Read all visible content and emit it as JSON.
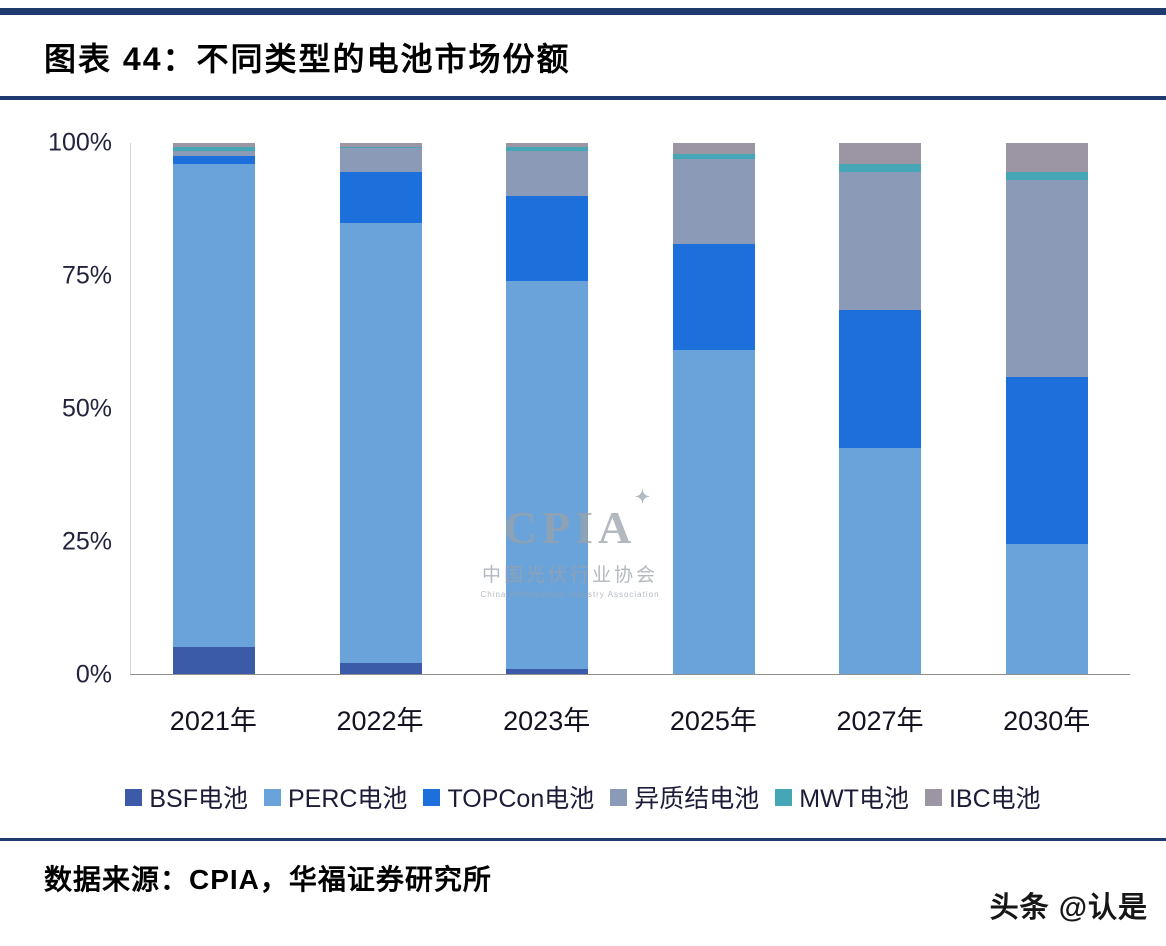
{
  "header": {
    "title": "图表 44：不同类型的电池市场份额"
  },
  "watermark": {
    "line1": "CPIA",
    "star": "✦",
    "line2": "中国光伏行业协会",
    "line3": "China Photovoltaic Industry Association"
  },
  "footer": {
    "source": "数据来源：CPIA，华福证券研究所",
    "credit": "头条 @认是"
  },
  "chart_data": {
    "type": "bar",
    "stacked": true,
    "title": "不同类型的电池市场份额",
    "categories": [
      "2021年",
      "2022年",
      "2023年",
      "2025年",
      "2027年",
      "2030年"
    ],
    "series": [
      {
        "name": "BSF电池",
        "color": "#3b5ba8",
        "values": [
          5,
          2,
          1,
          0,
          0,
          0
        ]
      },
      {
        "name": "PERC电池",
        "color": "#6aa2da",
        "values": [
          91,
          83,
          73,
          61,
          42.5,
          24.5
        ]
      },
      {
        "name": "TOPCon电池",
        "color": "#1d6fdb",
        "values": [
          1.5,
          9.5,
          16,
          20,
          26,
          31.5
        ]
      },
      {
        "name": "异质结电池",
        "color": "#8b9ab6",
        "values": [
          1,
          4.5,
          8.5,
          16,
          26,
          37
        ]
      },
      {
        "name": "MWT电池",
        "color": "#45a6b5",
        "values": [
          0.7,
          0.3,
          0.8,
          1,
          1.5,
          1.5
        ]
      },
      {
        "name": "IBC电池",
        "color": "#9c95a4",
        "values": [
          0.8,
          0.7,
          0.7,
          2,
          4,
          5.5
        ]
      }
    ],
    "xlabel": "",
    "ylabel": "",
    "ylim": [
      0,
      100
    ],
    "yticks": [
      "0%",
      "25%",
      "50%",
      "75%",
      "100%"
    ],
    "grid": false,
    "legend_position": "bottom"
  }
}
